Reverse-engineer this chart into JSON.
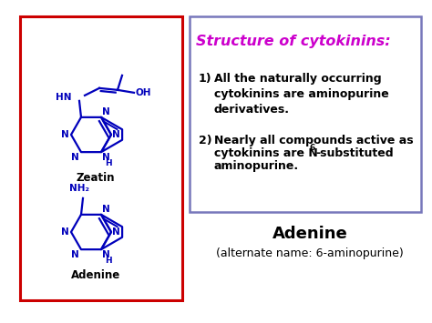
{
  "bg_color": "#ffffff",
  "left_box_color": "#cc0000",
  "right_box_color": "#7777bb",
  "title": "Structure of cytokinins:",
  "title_color": "#cc00cc",
  "point1_num": "1)",
  "point1": "All the naturally occurring\ncytokinins are aminopurine\nderivatives.",
  "point2_num": "2)",
  "point2_line1": "Nearly all compounds active as",
  "point2_line2a": "cytokinins are N",
  "point2_super": "6",
  "point2_line2b": "-substituted",
  "point2_line3": "aminopurine.",
  "adenine_title": "Adenine",
  "adenine_sub": "(alternate name: 6-aminopurine)",
  "zeatin_label": "Zeatin",
  "adenine_label": "Adenine",
  "molecule_color": "#0000bb",
  "label_color": "#000000"
}
